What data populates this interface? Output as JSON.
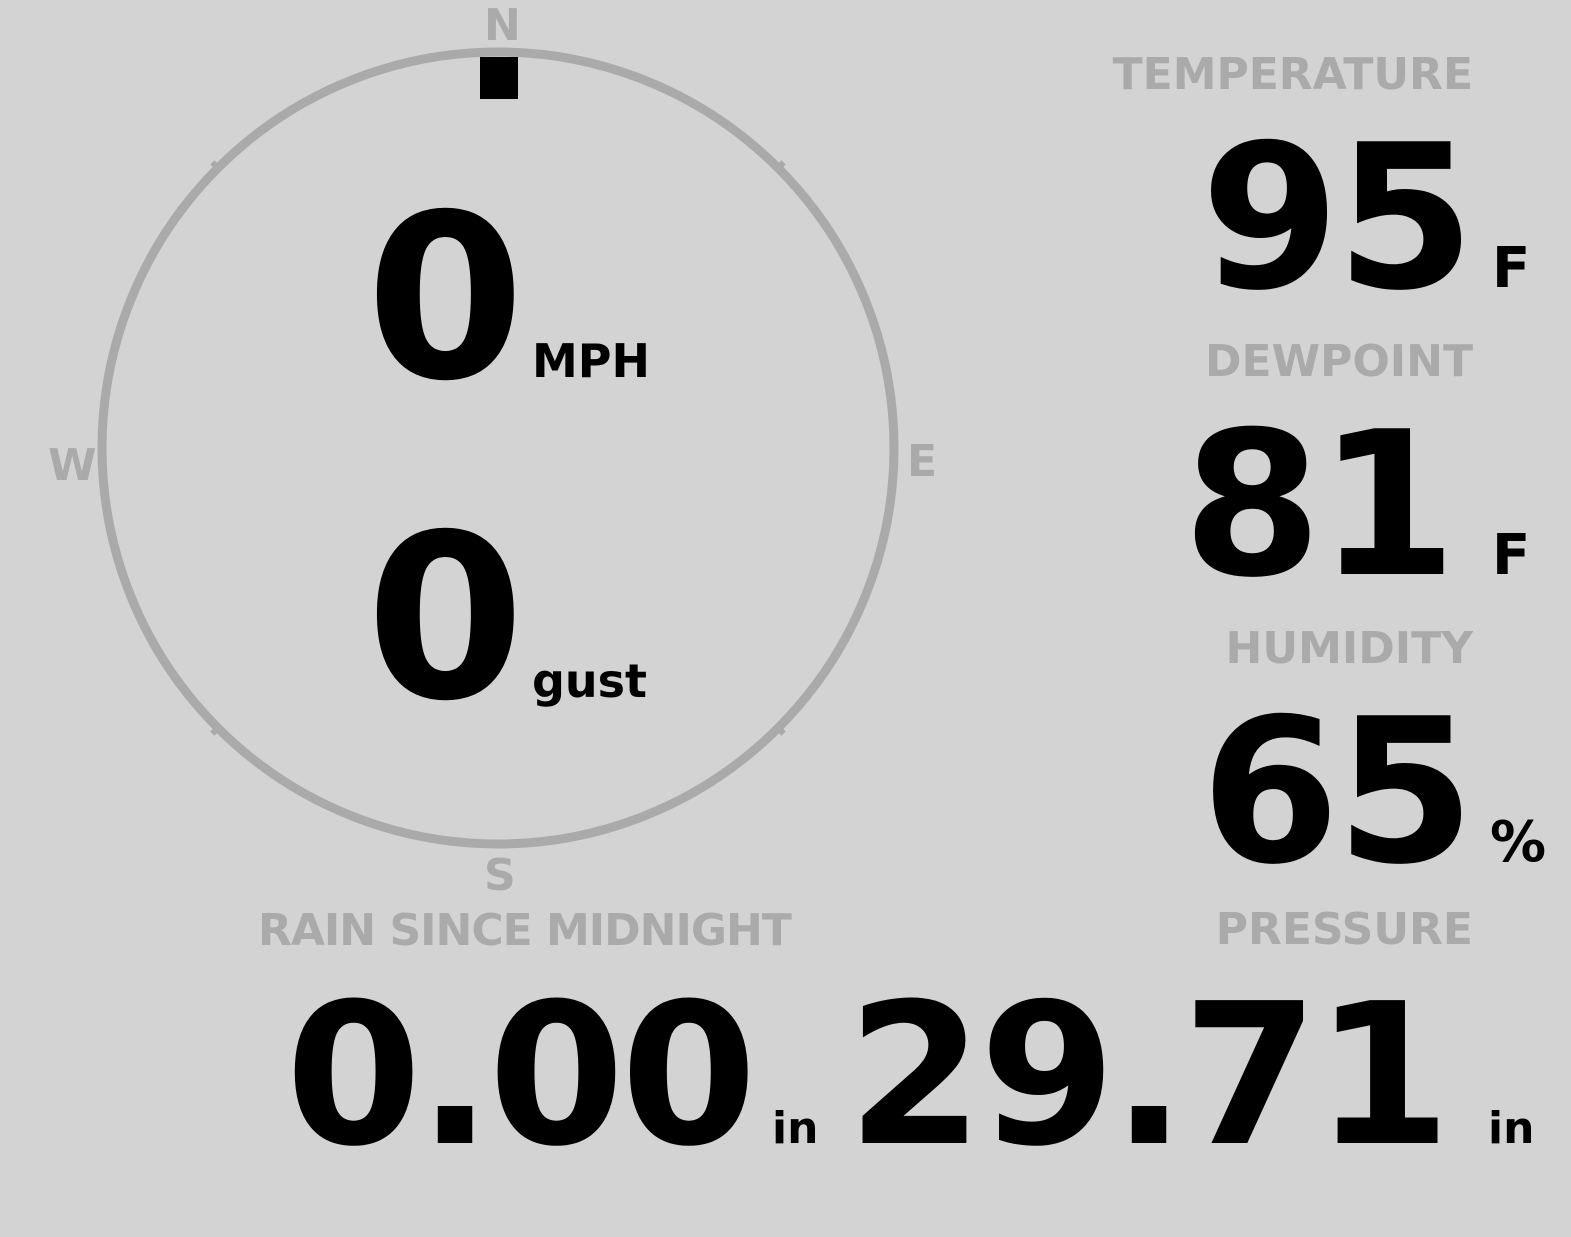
{
  "compass": {
    "north": "N",
    "south": "S",
    "east": "E",
    "west": "W",
    "wind_direction_degrees": 0,
    "ring_color": "#aaaaaa",
    "marker_color": "#000000"
  },
  "wind": {
    "speed": "0",
    "speed_unit": "MPH",
    "gust": "0",
    "gust_unit": "gust"
  },
  "temperature": {
    "label": "TEMPERATURE",
    "value": "95",
    "unit": "F"
  },
  "dewpoint": {
    "label": "DEWPOINT",
    "value": "81",
    "unit": "F"
  },
  "humidity": {
    "label": "HUMIDITY",
    "value": "65",
    "unit": "%"
  },
  "rain": {
    "label": "RAIN SINCE MIDNIGHT",
    "value": "0.00",
    "unit": "in"
  },
  "pressure": {
    "label": "PRESSURE",
    "value": "29.71",
    "unit": "in"
  },
  "colors": {
    "background": "#d3d3d3",
    "label": "#aaaaaa",
    "value": "#000000"
  }
}
